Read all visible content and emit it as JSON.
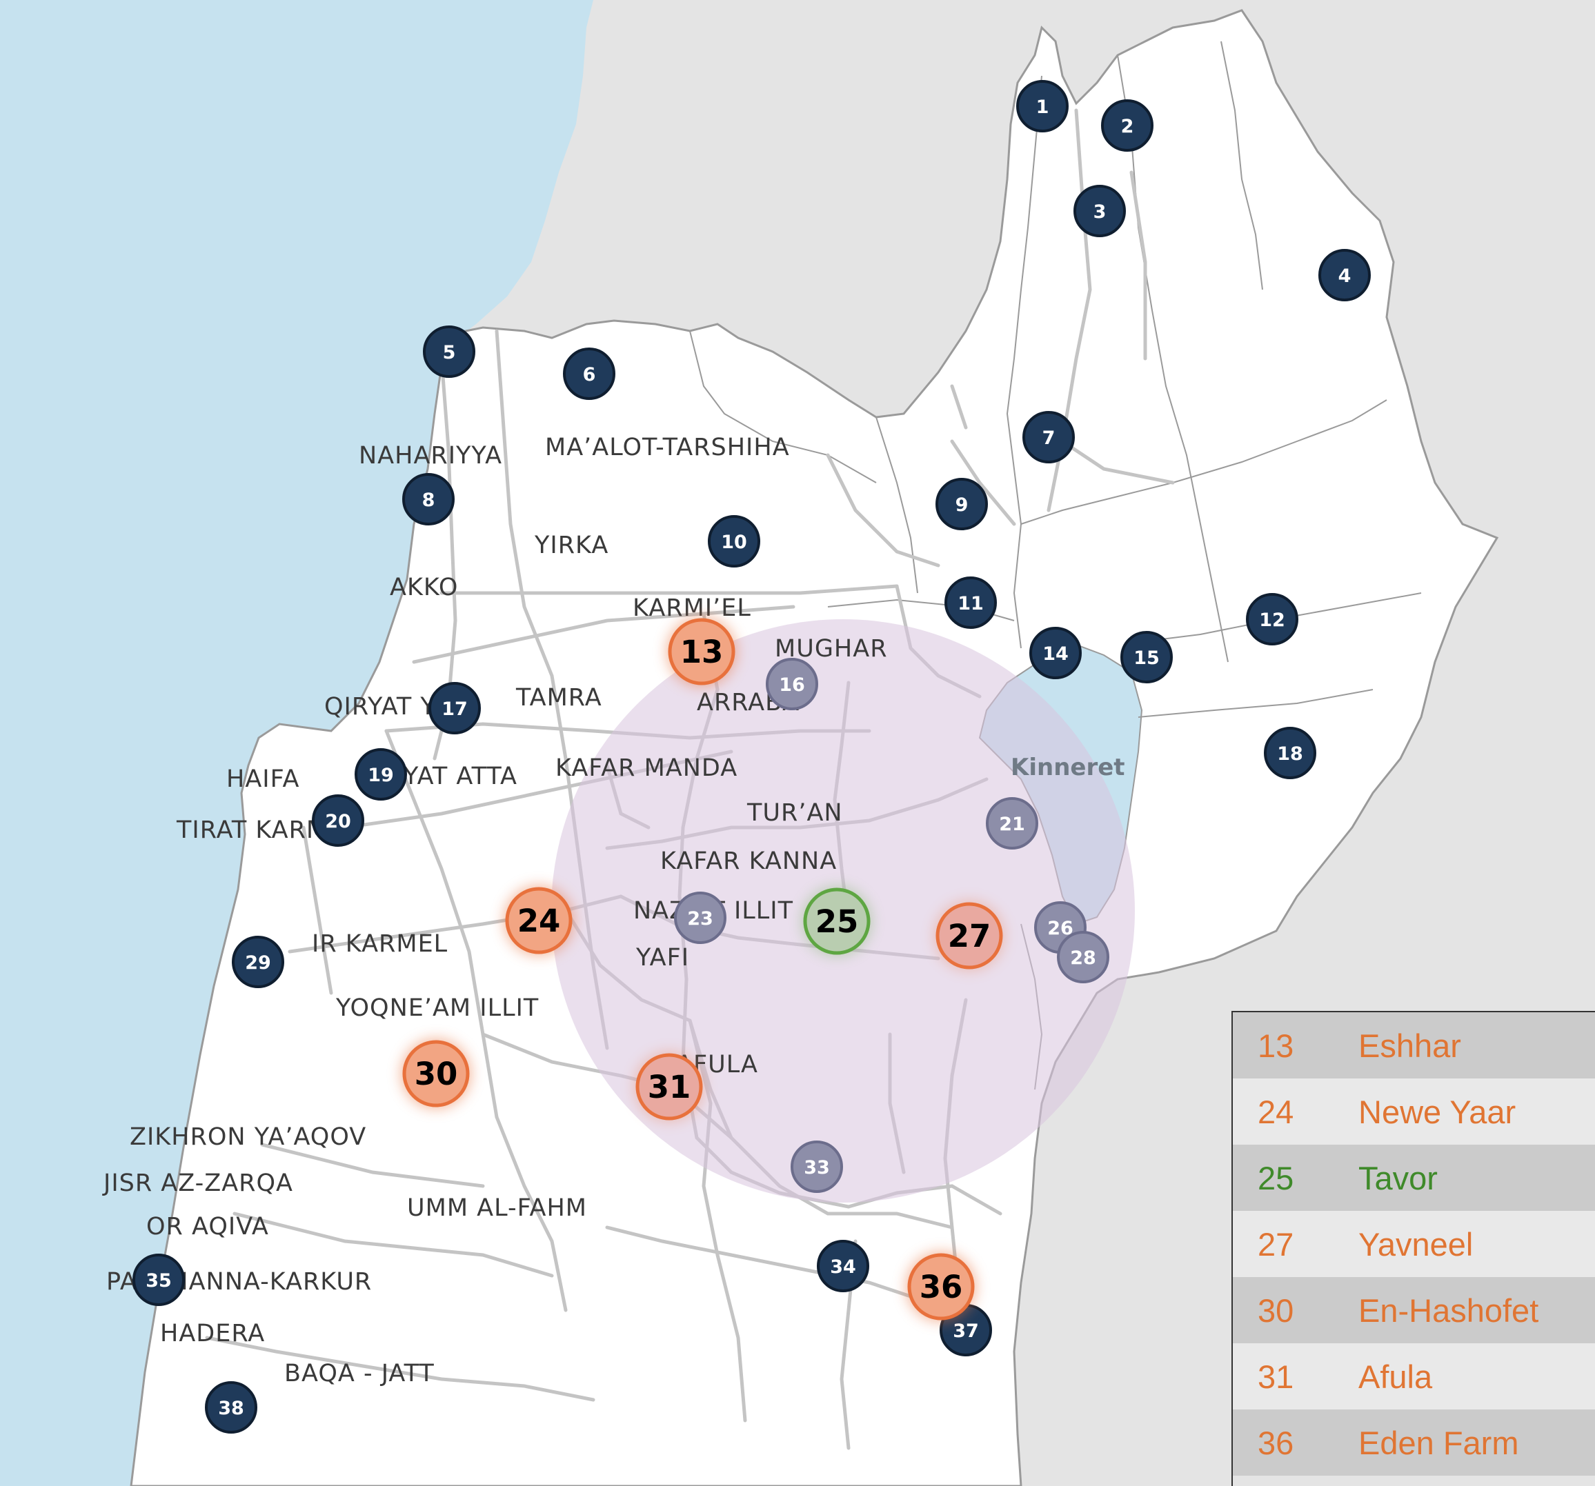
{
  "colors": {
    "sea": "#c6e2ef",
    "neighbor_land": "#e4e4e4",
    "land": "#ffffff",
    "border": "#9a9a9a",
    "road": "#c4c4c4",
    "lake": "#c6e2ef",
    "marker": "#1f3a5a",
    "highlight_orange": "#e87440",
    "highlight_green": "#5ea642",
    "region_circle": "#d9c5de",
    "legend_orange": "#e07533",
    "legend_green": "#3f8a2a"
  },
  "places": [
    {
      "id": "nahariyya",
      "name": "NAHARIYYA"
    },
    {
      "id": "maalot",
      "name": "MA’ALOT-TARSHIHA"
    },
    {
      "id": "yirka",
      "name": "YIRKA"
    },
    {
      "id": "akko",
      "name": "AKKO"
    },
    {
      "id": "karmiel",
      "name": "KARMI’EL"
    },
    {
      "id": "mughar",
      "name": "MUGHAR"
    },
    {
      "id": "tamra",
      "name": "TAMRA"
    },
    {
      "id": "arraba",
      "name": "ARRABA"
    },
    {
      "id": "qiryat",
      "name": "QIRYAT Y"
    },
    {
      "id": "haifa",
      "name": "HAIFA"
    },
    {
      "id": "qiryatatta",
      "name": "YAT ATTA"
    },
    {
      "id": "kafarmanda",
      "name": "KAFAR MANDA"
    },
    {
      "id": "tiratkarmel",
      "name": "TIRAT KARM"
    },
    {
      "id": "turan",
      "name": "TUR’AN"
    },
    {
      "id": "kafarkanna",
      "name": "KAFAR KANNA"
    },
    {
      "id": "nazaratillit",
      "name": "NAZ    AT ILLIT"
    },
    {
      "id": "yafi",
      "name": "YAFI"
    },
    {
      "id": "irkarmel",
      "name": "IR KARMEL"
    },
    {
      "id": "yoqneam",
      "name": "YOQNE’AM ILLIT"
    },
    {
      "id": "afula",
      "name": "AFULA"
    },
    {
      "id": "zikhron",
      "name": "ZIKHRON YA’AQOV"
    },
    {
      "id": "jisr",
      "name": "JISR AZ-ZARQA"
    },
    {
      "id": "oraqiva",
      "name": "OR AQIVA"
    },
    {
      "id": "ummalfahm",
      "name": "UMM AL-FAHM"
    },
    {
      "id": "pardes",
      "name": "PA    S HANNA-KARKUR"
    },
    {
      "id": "hadera",
      "name": "HADERA"
    },
    {
      "id": "baqa",
      "name": "BAQA - JATT"
    }
  ],
  "lake_label": "Kinneret",
  "markers": [
    {
      "n": "1"
    },
    {
      "n": "2"
    },
    {
      "n": "3"
    },
    {
      "n": "4"
    },
    {
      "n": "5"
    },
    {
      "n": "6"
    },
    {
      "n": "7"
    },
    {
      "n": "8"
    },
    {
      "n": "9"
    },
    {
      "n": "10"
    },
    {
      "n": "11"
    },
    {
      "n": "12"
    },
    {
      "n": "14"
    },
    {
      "n": "15"
    },
    {
      "n": "16"
    },
    {
      "n": "17"
    },
    {
      "n": "18"
    },
    {
      "n": "19"
    },
    {
      "n": "20"
    },
    {
      "n": "21"
    },
    {
      "n": "23"
    },
    {
      "n": "26"
    },
    {
      "n": "28"
    },
    {
      "n": "29"
    },
    {
      "n": "33"
    },
    {
      "n": "34"
    },
    {
      "n": "35"
    },
    {
      "n": "37"
    },
    {
      "n": "38"
    }
  ],
  "highlighted_sites": [
    {
      "n": "13",
      "color": "orange"
    },
    {
      "n": "24",
      "color": "orange"
    },
    {
      "n": "25",
      "color": "green"
    },
    {
      "n": "27",
      "color": "orange"
    },
    {
      "n": "30",
      "color": "orange"
    },
    {
      "n": "31",
      "color": "orange"
    },
    {
      "n": "36",
      "color": "orange"
    }
  ],
  "legend": [
    {
      "num": "13",
      "name": "Eshhar",
      "color": "#e07533"
    },
    {
      "num": "24",
      "name": "Newe Yaar",
      "color": "#e07533"
    },
    {
      "num": "25",
      "name": "Tavor",
      "color": "#3f8a2a"
    },
    {
      "num": "27",
      "name": "Yavneel",
      "color": "#e07533"
    },
    {
      "num": "30",
      "name": "En-Hashofet",
      "color": "#e07533"
    },
    {
      "num": "31",
      "name": "Afula",
      "color": "#e07533"
    },
    {
      "num": "36",
      "name": "Eden Farm",
      "color": "#e07533"
    }
  ]
}
